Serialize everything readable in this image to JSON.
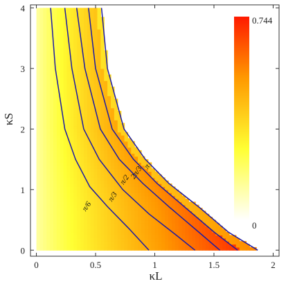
{
  "chart_data": {
    "type": "heatmap",
    "title": "",
    "xlabel": "κL",
    "ylabel": "κS",
    "xlim": [
      -0.05,
      2.05
    ],
    "ylim": [
      -0.1,
      4.05
    ],
    "x_ticks": [
      "0",
      "0.5",
      "1",
      "1.5",
      "2"
    ],
    "x_tick_values": [
      0,
      0.5,
      1,
      1.5,
      2
    ],
    "y_ticks": [
      "0",
      "1",
      "2",
      "3",
      "4"
    ],
    "y_tick_values": [
      0,
      1,
      2,
      3,
      4
    ],
    "colorbar": {
      "min_label": "0",
      "max_label": "0.744",
      "min": 0,
      "max": 0.744,
      "colors": [
        "#ffffff",
        "#ffff33",
        "#ff9900",
        "#ff1a00"
      ]
    },
    "region_boundary": "κL·(κS + 0.33) ≈ 0.61 … curve from (0.12, 4) to (1.87, 0)",
    "contours": [
      {
        "label": "π/6",
        "points": [
          [
            0.12,
            4
          ],
          [
            0.16,
            3
          ],
          [
            0.24,
            2
          ],
          [
            0.33,
            1.5
          ],
          [
            0.45,
            1.05
          ],
          [
            0.6,
            0.72
          ],
          [
            0.78,
            0.36
          ],
          [
            0.95,
            0
          ]
        ]
      },
      {
        "label": "π/3",
        "points": [
          [
            0.24,
            4
          ],
          [
            0.3,
            3
          ],
          [
            0.4,
            2
          ],
          [
            0.53,
            1.5
          ],
          [
            0.73,
            1.0
          ],
          [
            0.95,
            0.6
          ],
          [
            1.18,
            0.25
          ],
          [
            1.34,
            0
          ]
        ]
      },
      {
        "label": "π/2",
        "points": [
          [
            0.34,
            4
          ],
          [
            0.41,
            3
          ],
          [
            0.54,
            2
          ],
          [
            0.7,
            1.5
          ],
          [
            0.9,
            1.1
          ],
          [
            1.13,
            0.7
          ],
          [
            1.37,
            0.3
          ],
          [
            1.55,
            0
          ]
        ]
      },
      {
        "label": "2π/3",
        "points": [
          [
            0.44,
            4
          ],
          [
            0.5,
            3
          ],
          [
            0.64,
            2
          ],
          [
            0.82,
            1.5
          ],
          [
            1.02,
            1.1
          ],
          [
            1.26,
            0.7
          ],
          [
            1.5,
            0.3
          ],
          [
            1.7,
            0
          ]
        ]
      },
      {
        "label": "π",
        "points": [
          [
            0.55,
            4
          ],
          [
            0.6,
            3
          ],
          [
            0.74,
            2
          ],
          [
            0.92,
            1.5
          ],
          [
            1.12,
            1.1
          ],
          [
            1.38,
            0.7
          ],
          [
            1.62,
            0.3
          ],
          [
            1.87,
            0
          ]
        ]
      }
    ]
  }
}
